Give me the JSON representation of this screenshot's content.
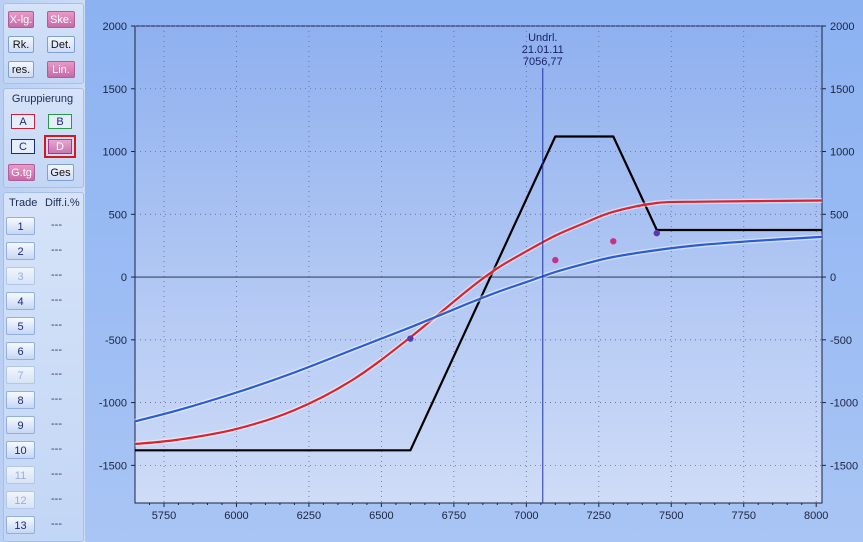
{
  "toolbar": {
    "buttons": [
      {
        "label": "X-lg.",
        "active": true
      },
      {
        "label": "Ske.",
        "active": true
      },
      {
        "label": "Rk.",
        "active": false
      },
      {
        "label": "Det.",
        "active": false
      },
      {
        "label": "res.",
        "active": false
      },
      {
        "label": "Lin.",
        "active": true
      }
    ]
  },
  "grouping": {
    "title": "Gruppierung",
    "groups": [
      {
        "label": "A",
        "color": "#c8233a"
      },
      {
        "label": "B",
        "color": "#2a9a4a"
      },
      {
        "label": "C",
        "color": "#1a2d7a"
      },
      {
        "label": "D",
        "color": "#b0308c",
        "selected": true
      }
    ],
    "gtg_label": "G.tg",
    "ges_label": "Ges"
  },
  "trades": {
    "header_trade": "Trade",
    "header_diff": "Diff.i.%",
    "rows": [
      {
        "num": "1",
        "diff": "---",
        "enabled": true
      },
      {
        "num": "2",
        "diff": "---",
        "enabled": true
      },
      {
        "num": "3",
        "diff": "---",
        "enabled": false
      },
      {
        "num": "4",
        "diff": "---",
        "enabled": true
      },
      {
        "num": "5",
        "diff": "---",
        "enabled": true
      },
      {
        "num": "6",
        "diff": "---",
        "enabled": true
      },
      {
        "num": "7",
        "diff": "---",
        "enabled": false
      },
      {
        "num": "8",
        "diff": "---",
        "enabled": true
      },
      {
        "num": "9",
        "diff": "---",
        "enabled": true
      },
      {
        "num": "10",
        "diff": "---",
        "enabled": true
      },
      {
        "num": "11",
        "diff": "---",
        "enabled": false
      },
      {
        "num": "12",
        "diff": "---",
        "enabled": false
      },
      {
        "num": "13",
        "diff": "---",
        "enabled": true
      }
    ]
  },
  "chart_data": {
    "type": "line",
    "title": "",
    "xlabel": "",
    "ylabel": "",
    "xlim": [
      5650,
      8020
    ],
    "ylim": [
      -1800,
      2000
    ],
    "x_ticks": [
      5750,
      6000,
      6250,
      6500,
      6750,
      7000,
      7250,
      7500,
      7750,
      8000
    ],
    "y_ticks": [
      2000,
      1500,
      1000,
      500,
      0,
      -500,
      -1000,
      -1500
    ],
    "grid": true,
    "underlying": {
      "label": "Undrl.",
      "date": "21.01.11",
      "value_label": "7056,77",
      "x": 7056.77
    },
    "series": [
      {
        "color": "#000000",
        "x": [
          5650,
          6600,
          7100,
          7300,
          7450,
          8020
        ],
        "y": [
          -1380,
          -1380,
          1120,
          1120,
          375,
          375
        ]
      },
      {
        "color": "#e0202a",
        "x": [
          5650,
          5800,
          6000,
          6200,
          6400,
          6600,
          6800,
          6900,
          7000,
          7100,
          7200,
          7300,
          7450,
          7600,
          7800,
          8020
        ],
        "y": [
          -1330,
          -1295,
          -1210,
          -1060,
          -820,
          -480,
          -100,
          70,
          205,
          330,
          430,
          520,
          590,
          600,
          605,
          610
        ]
      },
      {
        "color": "#2a5cd6",
        "x": [
          5650,
          5800,
          6000,
          6200,
          6400,
          6600,
          6800,
          6900,
          7000,
          7100,
          7200,
          7300,
          7450,
          7600,
          7800,
          8020
        ],
        "y": [
          -1150,
          -1060,
          -920,
          -760,
          -580,
          -400,
          -210,
          -120,
          -40,
          40,
          105,
          160,
          215,
          255,
          290,
          320
        ]
      }
    ],
    "markers": [
      {
        "x": 6600,
        "y": -490,
        "color": "#5a3aa8"
      },
      {
        "x": 7100,
        "y": 135,
        "color": "#c8308a"
      },
      {
        "x": 7300,
        "y": 285,
        "color": "#c8308a"
      },
      {
        "x": 7450,
        "y": 350,
        "color": "#5a3aa8"
      }
    ]
  }
}
